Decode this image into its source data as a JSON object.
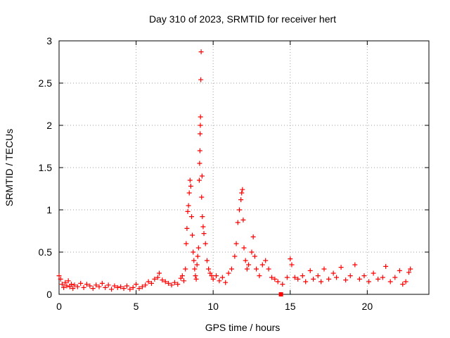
{
  "chart_data": {
    "type": "scatter",
    "title": "Day 310 of 2023, SRMTID for receiver hert",
    "xlabel": "GPS time / hours",
    "ylabel": "SRMTID / TECUs",
    "xlim": [
      0,
      24
    ],
    "ylim": [
      0,
      3
    ],
    "xticks": [
      0,
      5,
      10,
      15,
      20
    ],
    "yticks": [
      0,
      0.5,
      1,
      1.5,
      2,
      2.5,
      3
    ],
    "ytick_labels": [
      "0",
      "0.5",
      "1",
      "1.5",
      "2",
      "2.5",
      "3"
    ],
    "grid": true,
    "marker": "+",
    "series_color": "#ff0000",
    "special_point": {
      "x": 14.4,
      "y": 0.0,
      "marker": "square"
    },
    "points": [
      [
        0.0,
        0.22
      ],
      [
        0.1,
        0.18
      ],
      [
        0.2,
        0.12
      ],
      [
        0.3,
        0.08
      ],
      [
        0.4,
        0.14
      ],
      [
        0.5,
        0.1
      ],
      [
        0.6,
        0.16
      ],
      [
        0.7,
        0.09
      ],
      [
        0.8,
        0.12
      ],
      [
        0.9,
        0.07
      ],
      [
        1.0,
        0.11
      ],
      [
        1.2,
        0.09
      ],
      [
        1.4,
        0.13
      ],
      [
        1.6,
        0.08
      ],
      [
        1.8,
        0.12
      ],
      [
        2.0,
        0.1
      ],
      [
        2.2,
        0.07
      ],
      [
        2.4,
        0.11
      ],
      [
        2.6,
        0.09
      ],
      [
        2.8,
        0.13
      ],
      [
        3.0,
        0.08
      ],
      [
        3.2,
        0.11
      ],
      [
        3.4,
        0.06
      ],
      [
        3.6,
        0.1
      ],
      [
        3.8,
        0.08
      ],
      [
        4.0,
        0.09
      ],
      [
        4.2,
        0.07
      ],
      [
        4.4,
        0.1
      ],
      [
        4.6,
        0.06
      ],
      [
        4.8,
        0.08
      ],
      [
        5.0,
        0.12
      ],
      [
        5.2,
        0.07
      ],
      [
        5.4,
        0.09
      ],
      [
        5.6,
        0.11
      ],
      [
        5.8,
        0.15
      ],
      [
        6.0,
        0.13
      ],
      [
        6.2,
        0.18
      ],
      [
        6.4,
        0.2
      ],
      [
        6.5,
        0.25
      ],
      [
        6.7,
        0.17
      ],
      [
        6.9,
        0.15
      ],
      [
        7.1,
        0.13
      ],
      [
        7.3,
        0.11
      ],
      [
        7.5,
        0.14
      ],
      [
        7.7,
        0.12
      ],
      [
        7.9,
        0.19
      ],
      [
        8.0,
        0.22
      ],
      [
        8.1,
        0.16
      ],
      [
        8.2,
        0.3
      ],
      [
        8.25,
        0.6
      ],
      [
        8.3,
        0.78
      ],
      [
        8.35,
        0.98
      ],
      [
        8.4,
        1.05
      ],
      [
        8.45,
        1.2
      ],
      [
        8.5,
        1.35
      ],
      [
        8.55,
        1.28
      ],
      [
        8.6,
        0.92
      ],
      [
        8.65,
        0.7
      ],
      [
        8.7,
        0.5
      ],
      [
        8.75,
        0.4
      ],
      [
        8.8,
        0.3
      ],
      [
        8.85,
        0.22
      ],
      [
        8.9,
        0.18
      ],
      [
        8.95,
        0.35
      ],
      [
        9.0,
        0.45
      ],
      [
        9.05,
        0.55
      ],
      [
        9.1,
        1.35
      ],
      [
        9.12,
        1.55
      ],
      [
        9.14,
        1.7
      ],
      [
        9.15,
        1.9
      ],
      [
        9.17,
        2.0
      ],
      [
        9.18,
        2.1
      ],
      [
        9.2,
        2.54
      ],
      [
        9.22,
        2.87
      ],
      [
        9.25,
        1.15
      ],
      [
        9.28,
        1.4
      ],
      [
        9.3,
        0.92
      ],
      [
        9.35,
        0.8
      ],
      [
        9.4,
        0.72
      ],
      [
        9.5,
        0.6
      ],
      [
        9.6,
        0.4
      ],
      [
        9.7,
        0.3
      ],
      [
        9.8,
        0.25
      ],
      [
        9.9,
        0.22
      ],
      [
        10.0,
        0.18
      ],
      [
        10.2,
        0.22
      ],
      [
        10.4,
        0.16
      ],
      [
        10.6,
        0.2
      ],
      [
        10.8,
        0.14
      ],
      [
        11.0,
        0.25
      ],
      [
        11.2,
        0.3
      ],
      [
        11.4,
        0.45
      ],
      [
        11.5,
        0.6
      ],
      [
        11.6,
        0.85
      ],
      [
        11.7,
        1.0
      ],
      [
        11.8,
        1.12
      ],
      [
        11.85,
        1.2
      ],
      [
        11.9,
        1.24
      ],
      [
        11.95,
        0.88
      ],
      [
        12.0,
        0.55
      ],
      [
        12.1,
        0.4
      ],
      [
        12.2,
        0.3
      ],
      [
        12.3,
        0.35
      ],
      [
        12.5,
        0.5
      ],
      [
        12.6,
        0.68
      ],
      [
        12.7,
        0.45
      ],
      [
        12.8,
        0.3
      ],
      [
        13.0,
        0.22
      ],
      [
        13.2,
        0.35
      ],
      [
        13.4,
        0.4
      ],
      [
        13.6,
        0.3
      ],
      [
        13.8,
        0.2
      ],
      [
        14.0,
        0.18
      ],
      [
        14.2,
        0.15
      ],
      [
        14.5,
        0.12
      ],
      [
        14.8,
        0.2
      ],
      [
        15.0,
        0.42
      ],
      [
        15.1,
        0.35
      ],
      [
        15.3,
        0.2
      ],
      [
        15.5,
        0.18
      ],
      [
        15.8,
        0.22
      ],
      [
        16.0,
        0.15
      ],
      [
        16.3,
        0.28
      ],
      [
        16.5,
        0.18
      ],
      [
        16.8,
        0.22
      ],
      [
        17.0,
        0.15
      ],
      [
        17.2,
        0.3
      ],
      [
        17.5,
        0.18
      ],
      [
        17.8,
        0.25
      ],
      [
        18.0,
        0.2
      ],
      [
        18.3,
        0.32
      ],
      [
        18.6,
        0.17
      ],
      [
        18.9,
        0.22
      ],
      [
        19.2,
        0.35
      ],
      [
        19.5,
        0.18
      ],
      [
        19.8,
        0.22
      ],
      [
        20.1,
        0.15
      ],
      [
        20.4,
        0.25
      ],
      [
        20.7,
        0.18
      ],
      [
        21.0,
        0.2
      ],
      [
        21.2,
        0.33
      ],
      [
        21.5,
        0.15
      ],
      [
        21.8,
        0.2
      ],
      [
        22.1,
        0.28
      ],
      [
        22.3,
        0.12
      ],
      [
        22.5,
        0.15
      ],
      [
        22.7,
        0.26
      ],
      [
        22.8,
        0.3
      ]
    ]
  }
}
